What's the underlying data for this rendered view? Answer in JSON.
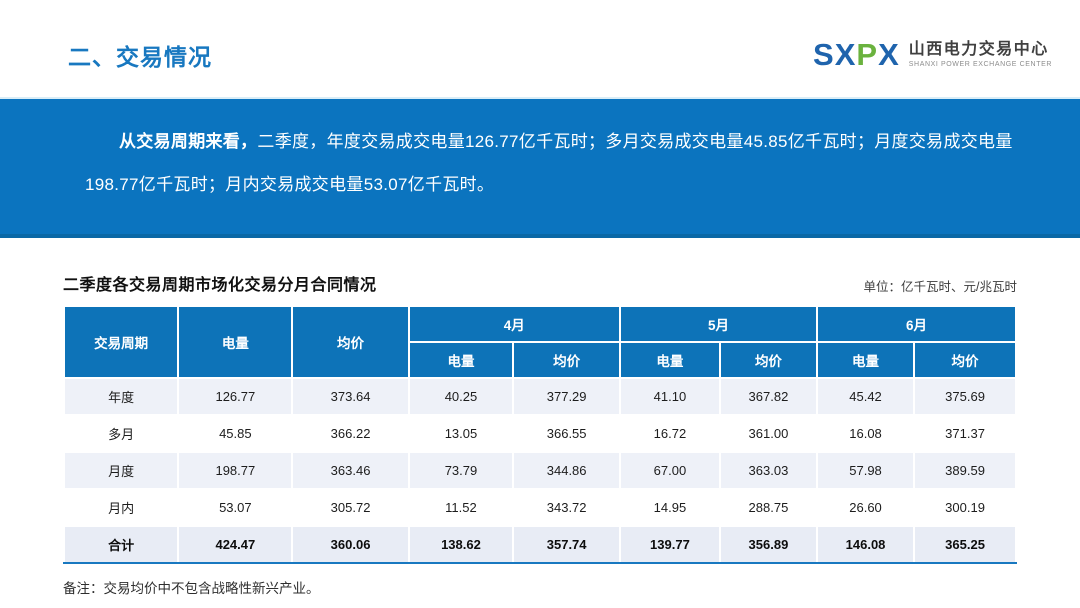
{
  "header": {
    "title": "二、交易情况",
    "logo": {
      "mark_part1": "SX",
      "mark_part2": "P",
      "mark_part3": "X",
      "name_cn": "山西电力交易中心",
      "name_en": "SHANXI POWER EXCHANGE CENTER"
    }
  },
  "banner": {
    "lead": "从交易周期来看，",
    "body": "二季度，年度交易成交电量126.77亿千瓦时；多月交易成交电量45.85亿千瓦时；月度交易成交电量198.77亿千瓦时；月内交易成交电量53.07亿千瓦时。"
  },
  "section": {
    "table_title": "二季度各交易周期市场化交易分月合同情况",
    "unit_label": "单位：亿千瓦时、元/兆瓦时",
    "note": "备注：交易均价中不包含战略性新兴产业。"
  },
  "table": {
    "header": {
      "period": "交易周期",
      "volume": "电量",
      "price": "均价",
      "months": [
        "4月",
        "5月",
        "6月"
      ],
      "sub_volume": "电量",
      "sub_price": "均价"
    },
    "rows": [
      {
        "period": "年度",
        "values": [
          "126.77",
          "373.64",
          "40.25",
          "377.29",
          "41.10",
          "367.82",
          "45.42",
          "375.69"
        ],
        "is_total": false
      },
      {
        "period": "多月",
        "values": [
          "45.85",
          "366.22",
          "13.05",
          "366.55",
          "16.72",
          "361.00",
          "16.08",
          "371.37"
        ],
        "is_total": false
      },
      {
        "period": "月度",
        "values": [
          "198.77",
          "363.46",
          "73.79",
          "344.86",
          "67.00",
          "363.03",
          "57.98",
          "389.59"
        ],
        "is_total": false
      },
      {
        "period": "月内",
        "values": [
          "53.07",
          "305.72",
          "11.52",
          "343.72",
          "14.95",
          "288.75",
          "26.60",
          "300.19"
        ],
        "is_total": false
      },
      {
        "period": "合计",
        "values": [
          "424.47",
          "360.06",
          "138.62",
          "357.74",
          "139.77",
          "356.89",
          "146.08",
          "365.25"
        ],
        "is_total": true
      }
    ]
  },
  "colors": {
    "title_blue": "#1878c0",
    "banner_blue": "#0b74bf",
    "table_header_blue": "#0d73b8",
    "row_stripe": "#eef1f8",
    "total_row_bg": "#e8ecf5",
    "total_border_blue": "#1878c0",
    "logo_blue": "#1f64ad",
    "logo_green": "#6ab23e"
  }
}
